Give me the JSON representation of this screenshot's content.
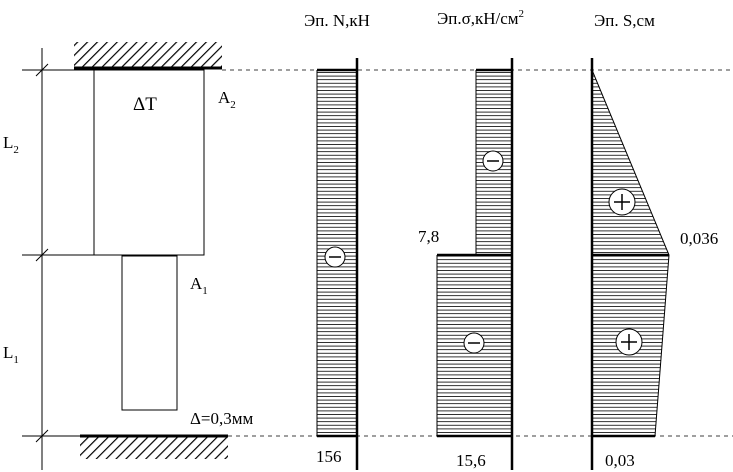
{
  "diagram": {
    "labels": {
      "delta_t": "ΔT",
      "area_a2": "A",
      "area_a2_sub": "2",
      "area_a1": "A",
      "area_a1_sub": "1",
      "length_l2": "L",
      "length_l2_sub": "2",
      "length_l1": "L",
      "length_l1_sub": "1",
      "gap": "Δ=0,3мм"
    },
    "epure_n": {
      "title": "Эп. N,кН",
      "value_bottom": "156",
      "sign": "minus"
    },
    "epure_sigma": {
      "title": "Эп.σ,кН/см",
      "title_sup": "2",
      "value_mid": "7,8",
      "value_bottom": "15,6",
      "signs": [
        "minus",
        "minus"
      ]
    },
    "epure_s": {
      "title": "Эп. S,см",
      "value_mid": "0,036",
      "value_bottom": "0,03",
      "signs": [
        "plus",
        "plus"
      ]
    }
  }
}
